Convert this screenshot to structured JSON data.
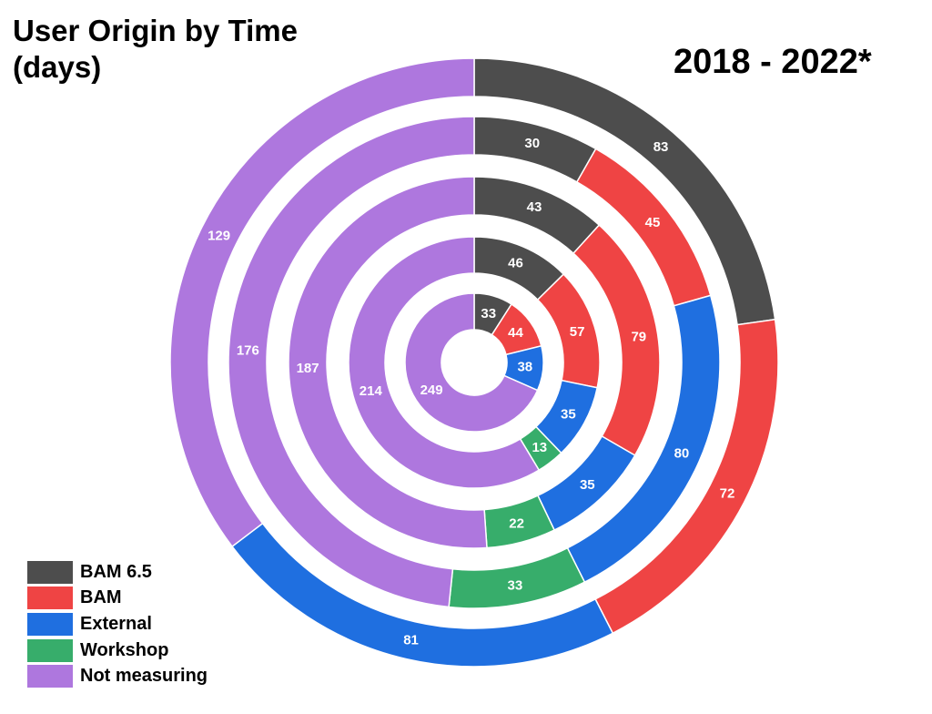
{
  "title": "User Origin by Time\n(days)",
  "subtitle": "2018 - 2022*",
  "chart_data": {
    "type": "pie",
    "subtype": "concentric-rings",
    "title": "User Origin by Time (days)",
    "subtitle": "2018 - 2022*",
    "categories": [
      "BAM 6.5",
      "BAM",
      "External",
      "Workshop",
      "Not measuring"
    ],
    "colors": [
      "#4d4d4d",
      "#ef4444",
      "#1f6fe0",
      "#37ad6b",
      "#ae77de"
    ],
    "rings": [
      {
        "values": [
          33,
          44,
          38,
          0,
          249
        ]
      },
      {
        "values": [
          46,
          57,
          35,
          13,
          214
        ]
      },
      {
        "values": [
          43,
          79,
          35,
          22,
          187
        ]
      },
      {
        "values": [
          30,
          45,
          80,
          33,
          176
        ]
      },
      {
        "values": [
          83,
          72,
          81,
          0,
          129
        ]
      }
    ],
    "legend_position": "bottom-left"
  }
}
